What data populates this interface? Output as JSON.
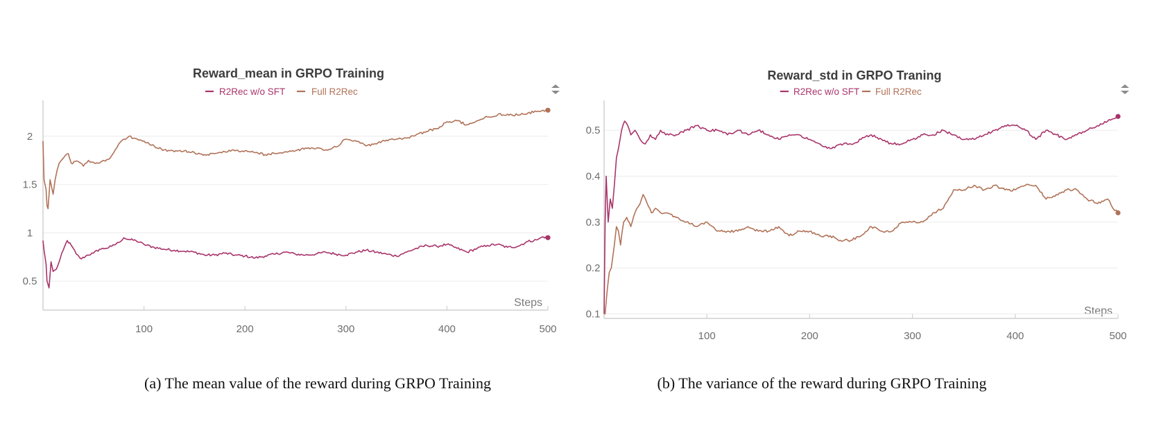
{
  "colors": {
    "series_a": "#a8336a",
    "series_b": "#b07257",
    "grid": "#ebebeb",
    "axis": "#d0d0d0"
  },
  "chart_data": [
    {
      "type": "line",
      "title": "Reward_mean in GRPO Training",
      "xlabel": "Steps",
      "ylabel": "",
      "xlim": [
        0,
        500
      ],
      "ylim": [
        0.2,
        2.3
      ],
      "xticks": [
        100,
        200,
        300,
        400,
        500
      ],
      "yticks": [
        0.5,
        1,
        1.5,
        2
      ],
      "ytick_labels": [
        "0.5",
        "1",
        "1.5",
        "2"
      ],
      "grid": true,
      "legend": "top-center",
      "series": [
        {
          "name": "R2Rec w/o SFT",
          "color": "#a8336a",
          "x": [
            0,
            1,
            3,
            4,
            6,
            8,
            10,
            13,
            16,
            20,
            24,
            28,
            33,
            38,
            44,
            50,
            56,
            62,
            68,
            75,
            80,
            85,
            92,
            100,
            110,
            120,
            130,
            140,
            150,
            160,
            170,
            180,
            190,
            200,
            210,
            220,
            230,
            240,
            250,
            260,
            270,
            280,
            290,
            300,
            310,
            320,
            330,
            340,
            350,
            360,
            370,
            380,
            390,
            400,
            410,
            420,
            430,
            440,
            450,
            460,
            470,
            480,
            490,
            495,
            500
          ],
          "values": [
            0.92,
            0.82,
            0.68,
            0.5,
            0.43,
            0.7,
            0.6,
            0.62,
            0.7,
            0.82,
            0.92,
            0.87,
            0.78,
            0.73,
            0.77,
            0.79,
            0.83,
            0.84,
            0.86,
            0.9,
            0.95,
            0.93,
            0.92,
            0.88,
            0.85,
            0.83,
            0.82,
            0.81,
            0.8,
            0.77,
            0.77,
            0.79,
            0.77,
            0.76,
            0.74,
            0.76,
            0.78,
            0.8,
            0.78,
            0.77,
            0.78,
            0.8,
            0.78,
            0.77,
            0.8,
            0.82,
            0.8,
            0.78,
            0.76,
            0.8,
            0.84,
            0.87,
            0.86,
            0.88,
            0.84,
            0.8,
            0.84,
            0.87,
            0.88,
            0.85,
            0.86,
            0.91,
            0.93,
            0.96,
            0.95
          ],
          "end_marker": true
        },
        {
          "name": "Full R2Rec",
          "color": "#b07257",
          "x": [
            0,
            1,
            3,
            4,
            5,
            7,
            9,
            10,
            12,
            14,
            16,
            19,
            22,
            25,
            28,
            32,
            36,
            40,
            45,
            50,
            55,
            60,
            65,
            70,
            75,
            80,
            85,
            90,
            95,
            100,
            110,
            120,
            130,
            140,
            150,
            160,
            170,
            180,
            190,
            200,
            210,
            220,
            230,
            240,
            250,
            260,
            270,
            280,
            290,
            300,
            310,
            320,
            330,
            340,
            350,
            360,
            370,
            380,
            390,
            400,
            410,
            420,
            430,
            440,
            450,
            460,
            470,
            480,
            490,
            495,
            500
          ],
          "values": [
            1.95,
            1.55,
            1.45,
            1.28,
            1.25,
            1.55,
            1.45,
            1.4,
            1.55,
            1.65,
            1.72,
            1.76,
            1.8,
            1.82,
            1.72,
            1.74,
            1.73,
            1.69,
            1.75,
            1.73,
            1.72,
            1.75,
            1.76,
            1.83,
            1.92,
            1.97,
            2.0,
            1.98,
            1.96,
            1.95,
            1.9,
            1.86,
            1.84,
            1.85,
            1.83,
            1.81,
            1.82,
            1.84,
            1.85,
            1.85,
            1.83,
            1.81,
            1.82,
            1.84,
            1.85,
            1.88,
            1.87,
            1.86,
            1.89,
            1.97,
            1.95,
            1.9,
            1.92,
            1.96,
            1.97,
            1.98,
            2.02,
            2.05,
            2.08,
            2.15,
            2.16,
            2.12,
            2.16,
            2.2,
            2.22,
            2.23,
            2.22,
            2.24,
            2.26,
            2.27,
            2.27
          ],
          "end_marker": true
        }
      ]
    },
    {
      "type": "line",
      "title": "Reward_std in GRPO Traning",
      "xlabel": "Steps",
      "ylabel": "",
      "xlim": [
        0,
        500
      ],
      "ylim": [
        0.09,
        0.55
      ],
      "xticks": [
        100,
        200,
        300,
        400,
        500
      ],
      "yticks": [
        0.1,
        0.2,
        0.3,
        0.4,
        0.5
      ],
      "ytick_labels": [
        "0.1",
        "0.2",
        "0.3",
        "0.4",
        "0.5"
      ],
      "grid": true,
      "legend": "top-center",
      "series": [
        {
          "name": "R2Rec w/o SFT",
          "color": "#a8336a",
          "x": [
            0,
            1,
            2,
            4,
            6,
            8,
            10,
            12,
            14,
            17,
            20,
            23,
            26,
            30,
            35,
            40,
            45,
            50,
            55,
            60,
            70,
            80,
            90,
            100,
            110,
            120,
            130,
            140,
            150,
            160,
            170,
            180,
            190,
            200,
            210,
            220,
            230,
            240,
            250,
            260,
            270,
            280,
            290,
            300,
            310,
            320,
            330,
            340,
            350,
            360,
            370,
            380,
            390,
            400,
            410,
            420,
            430,
            440,
            450,
            460,
            470,
            480,
            490,
            500
          ],
          "values": [
            0.1,
            0.3,
            0.4,
            0.3,
            0.35,
            0.33,
            0.38,
            0.44,
            0.46,
            0.5,
            0.52,
            0.51,
            0.49,
            0.5,
            0.48,
            0.47,
            0.49,
            0.48,
            0.5,
            0.49,
            0.49,
            0.5,
            0.51,
            0.5,
            0.5,
            0.49,
            0.5,
            0.49,
            0.5,
            0.49,
            0.48,
            0.49,
            0.49,
            0.48,
            0.47,
            0.46,
            0.47,
            0.47,
            0.48,
            0.49,
            0.48,
            0.47,
            0.47,
            0.48,
            0.49,
            0.49,
            0.5,
            0.49,
            0.48,
            0.48,
            0.49,
            0.5,
            0.51,
            0.51,
            0.5,
            0.48,
            0.5,
            0.49,
            0.48,
            0.49,
            0.5,
            0.51,
            0.52,
            0.53
          ],
          "end_marker": true
        },
        {
          "name": "Full R2Rec",
          "color": "#b07257",
          "x": [
            0,
            1,
            3,
            5,
            7,
            10,
            12,
            14,
            16,
            19,
            22,
            26,
            30,
            35,
            38,
            42,
            46,
            50,
            55,
            60,
            70,
            80,
            90,
            100,
            110,
            120,
            130,
            140,
            150,
            160,
            170,
            180,
            190,
            200,
            210,
            220,
            230,
            240,
            250,
            260,
            270,
            280,
            290,
            300,
            310,
            320,
            330,
            340,
            350,
            360,
            370,
            380,
            390,
            400,
            410,
            420,
            430,
            440,
            450,
            460,
            470,
            480,
            490,
            495,
            500
          ],
          "values": [
            0.1,
            0.1,
            0.15,
            0.19,
            0.2,
            0.25,
            0.29,
            0.28,
            0.25,
            0.3,
            0.31,
            0.29,
            0.32,
            0.34,
            0.36,
            0.34,
            0.32,
            0.33,
            0.32,
            0.32,
            0.31,
            0.3,
            0.29,
            0.3,
            0.28,
            0.28,
            0.28,
            0.29,
            0.28,
            0.28,
            0.29,
            0.27,
            0.28,
            0.28,
            0.27,
            0.27,
            0.26,
            0.26,
            0.27,
            0.29,
            0.28,
            0.28,
            0.3,
            0.3,
            0.3,
            0.32,
            0.33,
            0.37,
            0.37,
            0.38,
            0.37,
            0.38,
            0.37,
            0.37,
            0.38,
            0.38,
            0.35,
            0.36,
            0.37,
            0.37,
            0.35,
            0.34,
            0.35,
            0.33,
            0.32
          ],
          "end_marker": true
        }
      ]
    }
  ],
  "captions": [
    "(a) The mean value of the reward during GRPO Training",
    "(b) The variance of the reward during GRPO Training"
  ],
  "menu_icon": "chevron-menu-icon"
}
